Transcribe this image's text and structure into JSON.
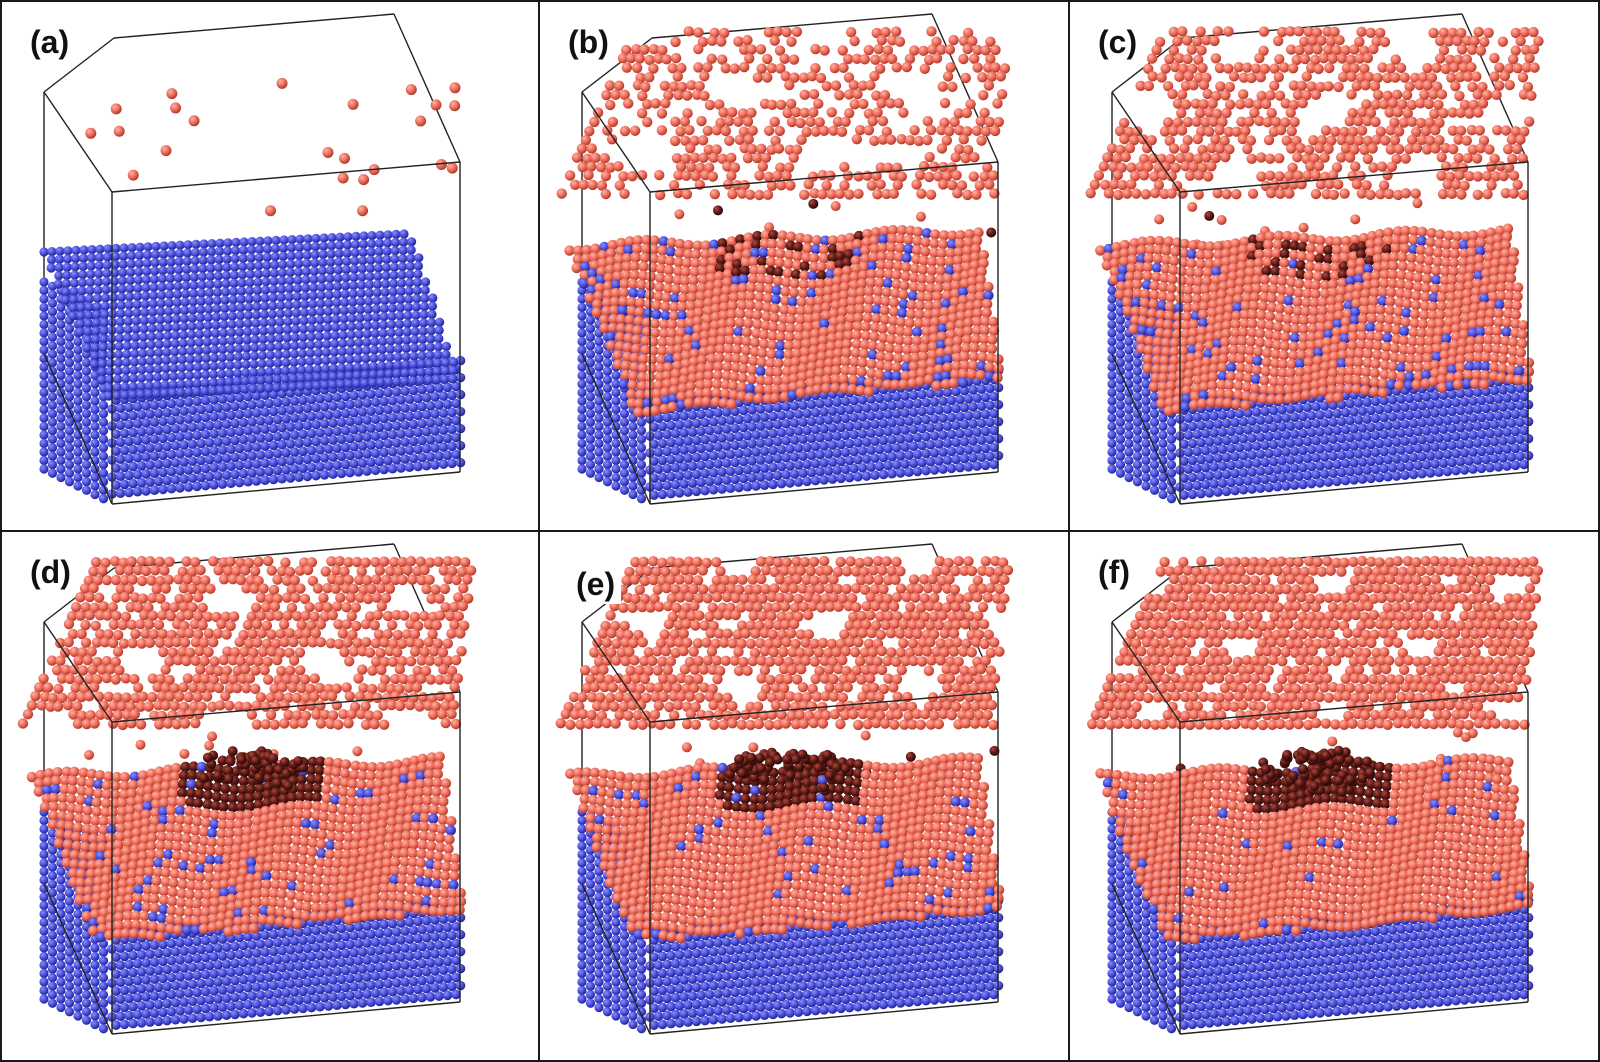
{
  "figure": {
    "panels": [
      {
        "label": "(a)",
        "stage": 0
      },
      {
        "label": "(b)",
        "stage": 1
      },
      {
        "label": "(c)",
        "stage": 2
      },
      {
        "label": "(d)",
        "stage": 3
      },
      {
        "label": "(e)",
        "stage": 4
      },
      {
        "label": "(f)",
        "stage": 5
      }
    ],
    "colors": {
      "substrate_atom": "#4a4fd6",
      "substrate_highlight": "#8a8eff",
      "deposit_atom": "#ee6a58",
      "deposit_highlight": "#ffb3a5",
      "deposit_dark": "#5a1a16",
      "box_edge": "#222222",
      "border": "#1a1a1a"
    }
  }
}
